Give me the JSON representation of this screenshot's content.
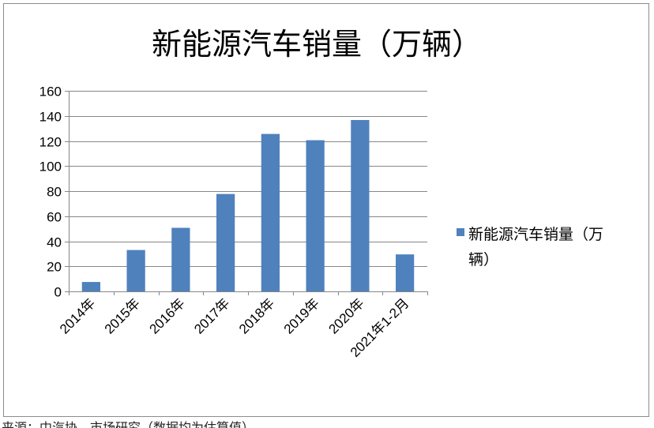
{
  "chart_data": {
    "type": "bar",
    "title": "新能源汽车销量（万辆）",
    "categories": [
      "2014年",
      "2015年",
      "2016年",
      "2017年",
      "2018年",
      "2019年",
      "2020年",
      "2021年1-2月"
    ],
    "series": [
      {
        "name": "新能源汽车销量（万辆）",
        "values": [
          7.5,
          33,
          50.7,
          77.7,
          125.6,
          120.6,
          136.7,
          29.5
        ],
        "color": "#4f81bd"
      }
    ],
    "legend_lines": [
      "新能源汽车销量（万",
      "辆）"
    ],
    "xlabel": "",
    "ylabel": "",
    "ylim": [
      0,
      160
    ],
    "yticks": [
      0,
      20,
      40,
      60,
      80,
      100,
      120,
      140,
      160
    ],
    "ytick_labels": [
      "0",
      "20",
      "40",
      "60",
      "80",
      "100",
      "120",
      "140",
      "160"
    ],
    "grid": true,
    "legend_position": "right"
  },
  "caption": "来源：中汽协、市场研究（数据均为估算值）",
  "colors": {
    "bar": "#4f81bd",
    "grid": "#878787",
    "axis": "#878787",
    "frame": "#8c8c8c"
  }
}
